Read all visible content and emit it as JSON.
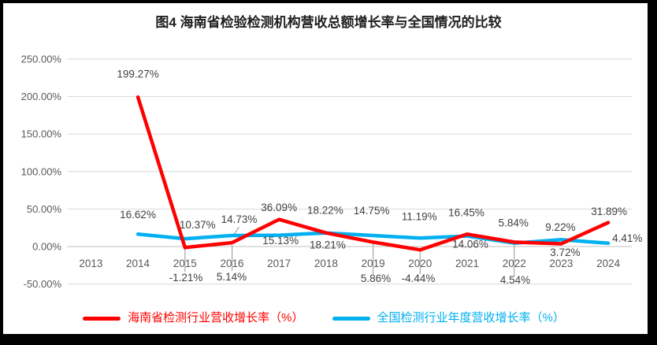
{
  "figure": {
    "title": "图4  海南省检验检测机构营收总额增长率与全国情况的比较"
  },
  "chart_data": {
    "type": "line",
    "title": "图4  海南省检验检测机构营收总额增长率与全国情况的比较",
    "xlabel": "",
    "ylabel": "",
    "categories": [
      "2013",
      "2014",
      "2015",
      "2016",
      "2017",
      "2018",
      "2019",
      "2020",
      "2021",
      "2022",
      "2023",
      "2024"
    ],
    "series": [
      {
        "name": "海南省检测行业营收增长率（%）",
        "color": "#FF0000",
        "values": [
          null,
          199.27,
          -1.21,
          5.14,
          36.09,
          18.22,
          5.86,
          -4.44,
          16.45,
          5.84,
          3.72,
          31.89
        ]
      },
      {
        "name": "全国检测行业年度营收增长率（%）",
        "color": "#00B0F0",
        "values": [
          null,
          16.62,
          10.37,
          14.73,
          15.13,
          18.21,
          14.75,
          11.19,
          14.06,
          4.54,
          9.22,
          4.41
        ]
      }
    ],
    "ylim": [
      -50,
      250
    ],
    "ytick_step": 50,
    "ytick_labels": [
      "250.00%",
      "200.00%",
      "150.00%",
      "100.00%",
      "50.00%",
      "0.00%",
      "-50.00%"
    ],
    "ytick_format": "two_decimals_percent",
    "grid": true,
    "data_labels": true,
    "legend_position": "bottom"
  },
  "style": {
    "background": "#FFFFFF",
    "frame": "#000000",
    "hainan_red": "#FF0000",
    "national_blue": "#00B0F0",
    "gridline": "#D9D9D9",
    "axis_line": "#BFBFBF",
    "tick_text": "#595959",
    "data_label_text": "#404040",
    "leader_line": "#A6A6A6",
    "title_text": "#1F1F1F"
  }
}
